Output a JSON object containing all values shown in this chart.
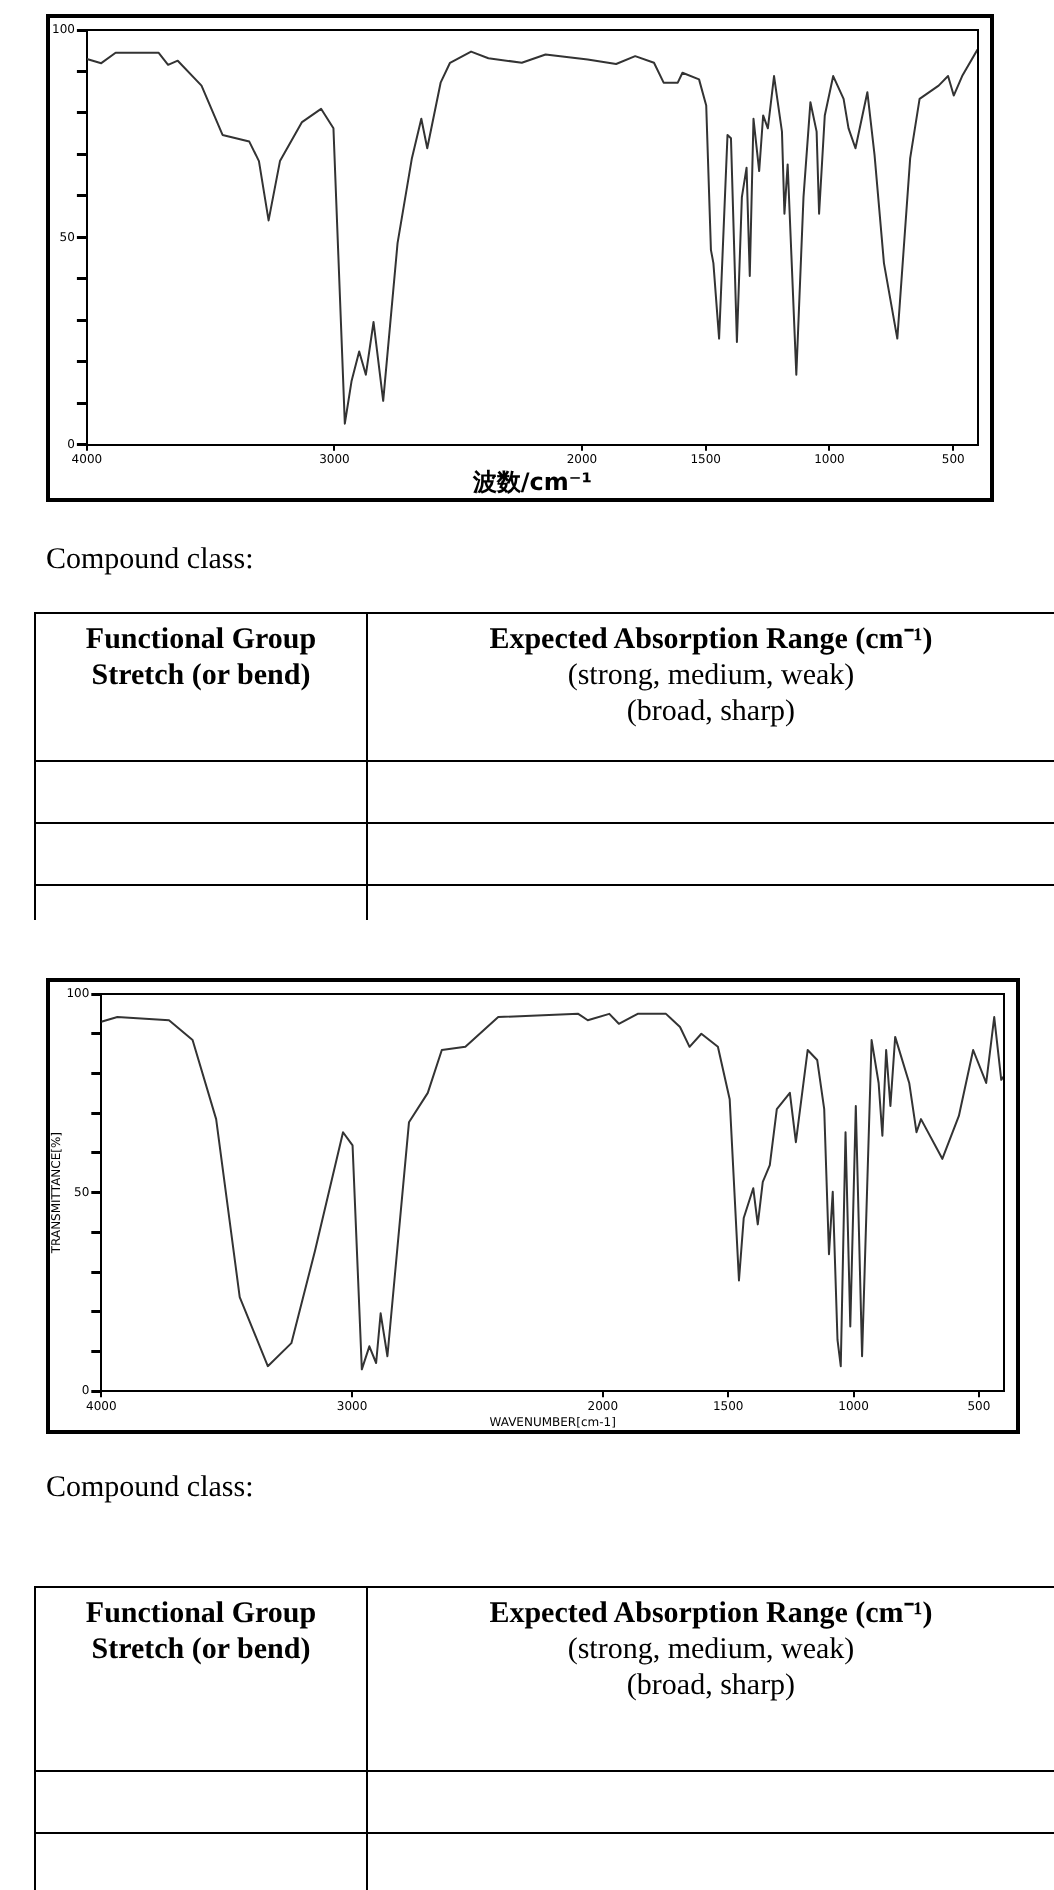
{
  "chart_data": [
    {
      "type": "line",
      "xlabel": "波数/cm⁻¹",
      "x": [
        4000,
        3942,
        3884,
        3710,
        3672,
        3633,
        3537,
        3452,
        3344,
        3305,
        3266,
        3220,
        3131,
        3054,
        3004,
        2958,
        2931,
        2900,
        2873,
        2842,
        2803,
        2745,
        2687,
        2649,
        2625,
        2571,
        2533,
        2448,
        2378,
        2243,
        2147,
        1977,
        1862,
        1785,
        1709,
        1670,
        1613,
        1594,
        1527,
        1498,
        1479,
        1469,
        1446,
        1412,
        1398,
        1374,
        1354,
        1335,
        1322,
        1307,
        1284,
        1268,
        1249,
        1224,
        1192,
        1182,
        1169,
        1134,
        1105,
        1077,
        1052,
        1042,
        1019,
        985,
        943,
        923,
        895,
        847,
        818,
        780,
        726,
        674,
        636,
        559,
        521,
        498,
        464,
        402
      ],
      "series": [
        {
          "color": "#333333",
          "values": [
            93,
            92,
            94.5,
            94.5,
            91.6,
            92.6,
            86.6,
            74.7,
            73.1,
            68.4,
            54.1,
            68.4,
            77.8,
            81,
            76.3,
            5.1,
            15.3,
            22.5,
            16.9,
            29.6,
            10.6,
            48.6,
            69.1,
            78.6,
            71.5,
            87.3,
            92.1,
            94.8,
            93.2,
            92.1,
            94.1,
            92.9,
            91.8,
            93.7,
            92.1,
            87.3,
            87.3,
            89.7,
            88.1,
            81.8,
            47,
            43.8,
            25.6,
            74.7,
            73.9,
            24.8,
            59.7,
            66.8,
            40.7,
            78.6,
            66,
            79.4,
            76.3,
            88.9,
            75.5,
            55.7,
            67.6,
            16.9,
            59.7,
            82.6,
            75.5,
            55.7,
            79.4,
            88.9,
            83.4,
            76.3,
            71.5,
            85,
            69.9,
            43.8,
            25.6,
            69.1,
            83.4,
            86.6,
            88.9,
            84.2,
            88.9,
            95.3
          ]
        }
      ],
      "xlim": [
        4000,
        400
      ],
      "xticks": [
        4000,
        3000,
        2000,
        1500,
        1000,
        500
      ],
      "ylim": [
        0,
        100
      ],
      "yticks": [
        0,
        {
          "value": 10,
          "label": null
        },
        {
          "value": 20,
          "label": null
        },
        {
          "value": 30,
          "label": null
        },
        {
          "value": 40,
          "label": null
        },
        50,
        {
          "value": 60,
          "label": null
        },
        {
          "value": 70,
          "label": null
        },
        {
          "value": 80,
          "label": null
        },
        {
          "value": 90,
          "label": null
        },
        100
      ]
    },
    {
      "type": "other",
      "annotations": [
        "Compound class:",
        "Functional Group Stretch (or bend)",
        "Expected Absorption Range (cm⁻¹)",
        "(strong, medium, weak)",
        "(broad, sharp)"
      ]
    },
    {
      "type": "line",
      "xlabel": "WAVENUMBER[cm-1]",
      "ylabel": "TRANSMITTANCE[%]",
      "x": [
        4000,
        3936,
        3730,
        3636,
        3542,
        3448,
        3336,
        3242,
        3148,
        3036,
        2998,
        2961,
        2931,
        2904,
        2886,
        2859,
        2773,
        2698,
        2642,
        2548,
        2417,
        2098,
        2060,
        1974,
        1936,
        1861,
        1748,
        1692,
        1654,
        1607,
        1541,
        1494,
        1457,
        1438,
        1400,
        1382,
        1362,
        1334,
        1306,
        1254,
        1230,
        1183,
        1145,
        1117,
        1098,
        1083,
        1064,
        1051,
        1032,
        1013,
        991,
        966,
        928,
        900,
        885,
        870,
        853,
        834,
        778,
        749,
        731,
        646,
        580,
        523,
        471,
        439,
        411,
        400
      ],
      "series": [
        {
          "color": "#333333",
          "values": [
            93,
            94.2,
            93.4,
            88.4,
            68.5,
            23.7,
            6.3,
            12.1,
            35.3,
            65.2,
            61.9,
            5.5,
            11.3,
            7.1,
            19.6,
            8.8,
            67.7,
            75.1,
            85.9,
            86.7,
            94.2,
            95,
            93.4,
            95,
            92.5,
            95,
            95,
            91.7,
            86.7,
            90,
            86.7,
            73.5,
            27.9,
            43.6,
            51.1,
            42,
            52.7,
            56.9,
            71,
            75.1,
            62.7,
            85.9,
            83.4,
            71,
            34.5,
            50.2,
            12.9,
            6.3,
            65.2,
            16.3,
            71.8,
            8.8,
            88.4,
            77.6,
            64.3,
            85.9,
            71.8,
            89.2,
            77.6,
            65.2,
            68.5,
            58.5,
            69.3,
            85.9,
            77.6,
            94.2,
            78.4,
            79.3
          ]
        }
      ],
      "xlim": [
        4000,
        400
      ],
      "xticks": [
        4000,
        3000,
        2000,
        1500,
        1000,
        500
      ],
      "ylim": [
        0,
        100
      ],
      "yticks": [
        0,
        {
          "value": 10,
          "label": null
        },
        {
          "value": 20,
          "label": null
        },
        {
          "value": 30,
          "label": null
        },
        {
          "value": 40,
          "label": null
        },
        50,
        {
          "value": 60,
          "label": null
        },
        {
          "value": 70,
          "label": null
        },
        {
          "value": 80,
          "label": null
        },
        {
          "value": 90,
          "label": null
        },
        100
      ]
    },
    {
      "type": "other",
      "annotations": [
        "Compound class:",
        "Functional Group Stretch (or bend)",
        "Expected Absorption Range (cm⁻¹)",
        "(strong, medium, weak)",
        "(broad, sharp)"
      ]
    }
  ]
}
